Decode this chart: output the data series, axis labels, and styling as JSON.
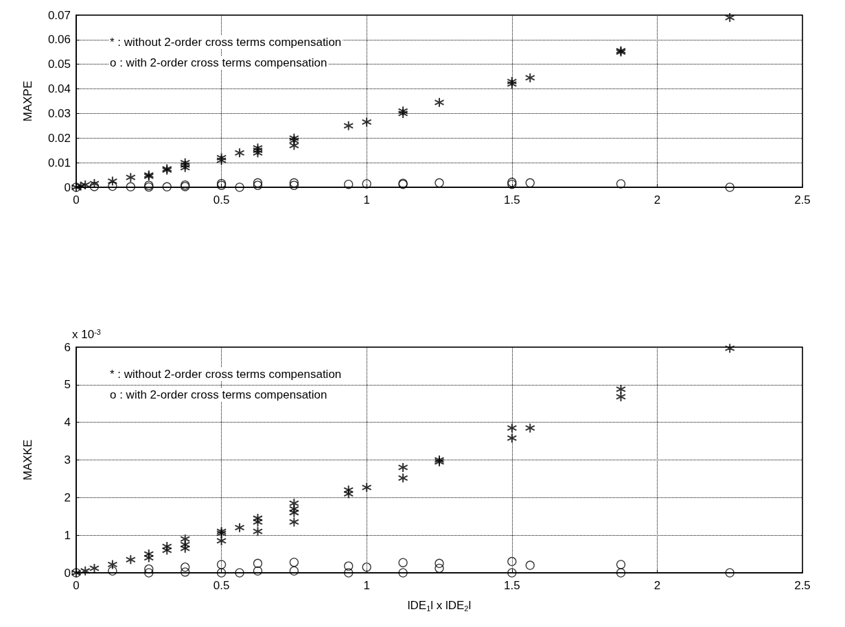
{
  "chart_data": [
    {
      "type": "scatter",
      "ylabel": "MAXPE",
      "annotations": [
        "* : without 2-order cross terms compensation",
        "o : with 2-order cross terms compensation"
      ],
      "xlim": [
        0,
        2.5
      ],
      "xticks": [
        0,
        0.5,
        1,
        1.5,
        2,
        2.5
      ],
      "ylim": [
        0,
        0.07
      ],
      "yticks": [
        0,
        0.01,
        0.02,
        0.03,
        0.04,
        0.05,
        0.06,
        0.07
      ],
      "grid": true,
      "series": [
        {
          "color": "#000000",
          "marker": "cross",
          "x": [
            0,
            0.0156,
            0.03125,
            0.0625,
            0.125,
            0.1875,
            0.25,
            0.25,
            0.3125,
            0.3125,
            0.375,
            0.375,
            0.375,
            0.5,
            0.5,
            0.5625,
            0.625,
            0.625,
            0.625,
            0.75,
            0.75,
            0.75,
            0.9375,
            1,
            1.125,
            1.125,
            1.25,
            1.5,
            1.5,
            1.5625,
            1.875,
            1.875,
            2.25
          ],
          "values": [
            0,
            0.0005,
            0.001,
            0.0015,
            0.0025,
            0.004,
            0.005,
            0.0045,
            0.0075,
            0.007,
            0.01,
            0.009,
            0.008,
            0.012,
            0.011,
            0.014,
            0.016,
            0.015,
            0.014,
            0.02,
            0.019,
            0.017,
            0.025,
            0.0265,
            0.031,
            0.03,
            0.0345,
            0.043,
            0.042,
            0.0445,
            0.0555,
            0.055,
            0.069
          ]
        },
        {
          "color": "#000000",
          "marker": "circle",
          "x": [
            0,
            0.0625,
            0.125,
            0.1875,
            0.25,
            0.25,
            0.3125,
            0.375,
            0.375,
            0.5,
            0.5,
            0.5625,
            0.625,
            0.625,
            0.75,
            0.75,
            0.9375,
            1,
            1.125,
            1.125,
            1.25,
            1.5,
            1.5,
            1.5625,
            1.875,
            2.25
          ],
          "values": [
            0,
            0.0003,
            0.0004,
            0.0002,
            0.0008,
            0.0001,
            0.0002,
            0.0009,
            0.0003,
            0.0015,
            0.0008,
            0,
            0.0018,
            0.0008,
            0.0018,
            0.0008,
            0.0012,
            0.0014,
            0.0016,
            0.0012,
            0.0018,
            0.002,
            0.0012,
            0.0018,
            0.0014,
            0
          ]
        }
      ]
    },
    {
      "type": "scatter",
      "ylabel": "MAXKE",
      "xlabel": "lDE$_{1}$l x lDE$_{2}$l",
      "annotations": [
        "x 10$^{-3}$",
        "* : without 2-order cross terms compensation",
        "o : with 2-order cross terms compensation"
      ],
      "xlim": [
        0,
        2.5
      ],
      "xticks": [
        0,
        0.5,
        1,
        1.5,
        2,
        2.5
      ],
      "ylim": [
        0,
        6
      ],
      "yticks": [
        0,
        1,
        2,
        3,
        4,
        5,
        6
      ],
      "grid": true,
      "series": [
        {
          "color": "#000000",
          "marker": "cross",
          "x": [
            0,
            0.03125,
            0.0625,
            0.125,
            0.1875,
            0.25,
            0.25,
            0.3125,
            0.3125,
            0.375,
            0.375,
            0.375,
            0.5,
            0.5,
            0.5,
            0.5625,
            0.625,
            0.625,
            0.625,
            0.75,
            0.75,
            0.75,
            0.75,
            0.9375,
            0.9375,
            1,
            1.125,
            1.125,
            1.25,
            1.25,
            1.5,
            1.5,
            1.5625,
            1.875,
            1.875,
            2.25
          ],
          "values": [
            0,
            0.05,
            0.12,
            0.22,
            0.35,
            0.5,
            0.4,
            0.7,
            0.6,
            0.9,
            0.75,
            0.65,
            1.1,
            1.05,
            0.85,
            1.2,
            1.45,
            1.35,
            1.1,
            1.85,
            1.7,
            1.6,
            1.35,
            2.2,
            2.1,
            2.27,
            2.8,
            2.52,
            3.0,
            2.95,
            3.85,
            3.58,
            3.85,
            4.88,
            4.68,
            5.97
          ]
        },
        {
          "color": "#000000",
          "marker": "circle",
          "x": [
            0,
            0.125,
            0.25,
            0.25,
            0.375,
            0.375,
            0.5,
            0.5,
            0.5625,
            0.625,
            0.625,
            0.75,
            0.75,
            0.9375,
            0.9375,
            1,
            1.125,
            1.125,
            1.25,
            1.25,
            1.5,
            1.5,
            1.5625,
            1.875,
            1.875,
            2.25
          ],
          "values": [
            0,
            0.05,
            0.1,
            0,
            0.15,
            0.02,
            0.22,
            0,
            0,
            0.25,
            0.05,
            0.28,
            0.05,
            0.18,
            0,
            0.15,
            0.27,
            0,
            0.25,
            0.12,
            0.3,
            0,
            0.2,
            0.22,
            0,
            0
          ]
        }
      ]
    }
  ]
}
